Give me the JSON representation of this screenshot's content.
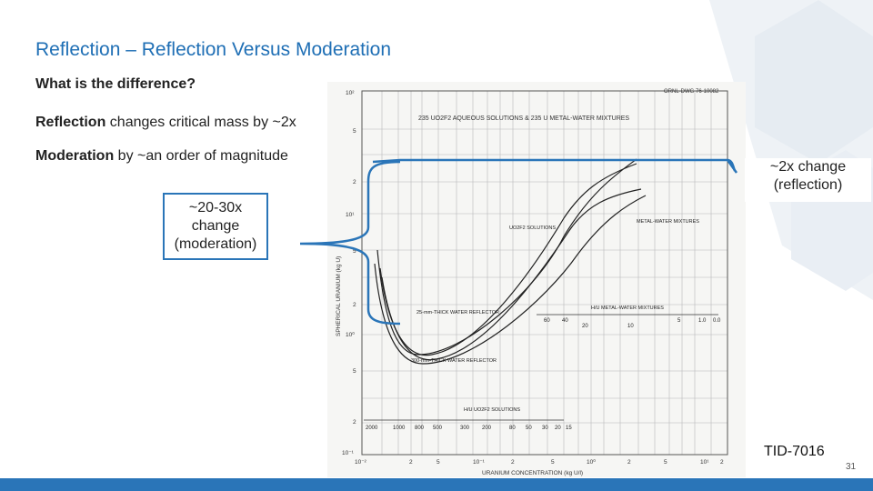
{
  "slide": {
    "title": "Reflection – Reflection Versus Moderation",
    "bullets": [
      {
        "bold": "What is the difference?",
        "rest": ""
      },
      {
        "bold": "Reflection",
        "rest": " changes critical mass by ~2x"
      },
      {
        "bold": "Moderation",
        "rest": " by ~an order of magnitude"
      }
    ],
    "callout_left": "~20-30x change (moderation)",
    "callout_right": "~2x change (reflection)",
    "source": "TID-7016",
    "page_number": "31"
  },
  "figure": {
    "header_id": "ORNL-DWG 76-10082",
    "header_text": "235 UO2F2 AQUEOUS SOLUTIONS & 235 U METAL-WATER MIXTURES",
    "y_label": "SPHERICAL URANIUM (kg U)",
    "x_label": "URANIUM CONCENTRATION (kg U/l)",
    "y_ticks": [
      "10²",
      "5",
      "2",
      "10¹",
      "5",
      "2",
      "10⁰",
      "5",
      "2",
      "10⁻¹"
    ],
    "x_ticks": [
      "10⁻²",
      "2",
      "5",
      "10⁻¹",
      "2",
      "5",
      "10⁰",
      "2",
      "5",
      "10¹",
      "2"
    ],
    "labels": {
      "uo2f2_solutions": "UO2F2 SOLUTIONS",
      "metal_water": "METAL-WATER MIXTURES",
      "thin_reflector": "25-mm-THICK WATER REFLECTOR",
      "thick_reflector": "300-mm-THICK WATER REFLECTOR",
      "h_u_metal": "H/U METAL-WATER MIXTURES",
      "h_u_solutions": "H/U UO2F2 SOLUTIONS"
    },
    "hu_metal_values": [
      "60",
      "40",
      "20",
      "10",
      "5",
      "1.0",
      "0.0"
    ],
    "hu_solution_values": [
      "2000",
      "1000",
      "800",
      "500",
      "300",
      "200",
      "80",
      "50",
      "30",
      "20",
      "15"
    ]
  }
}
